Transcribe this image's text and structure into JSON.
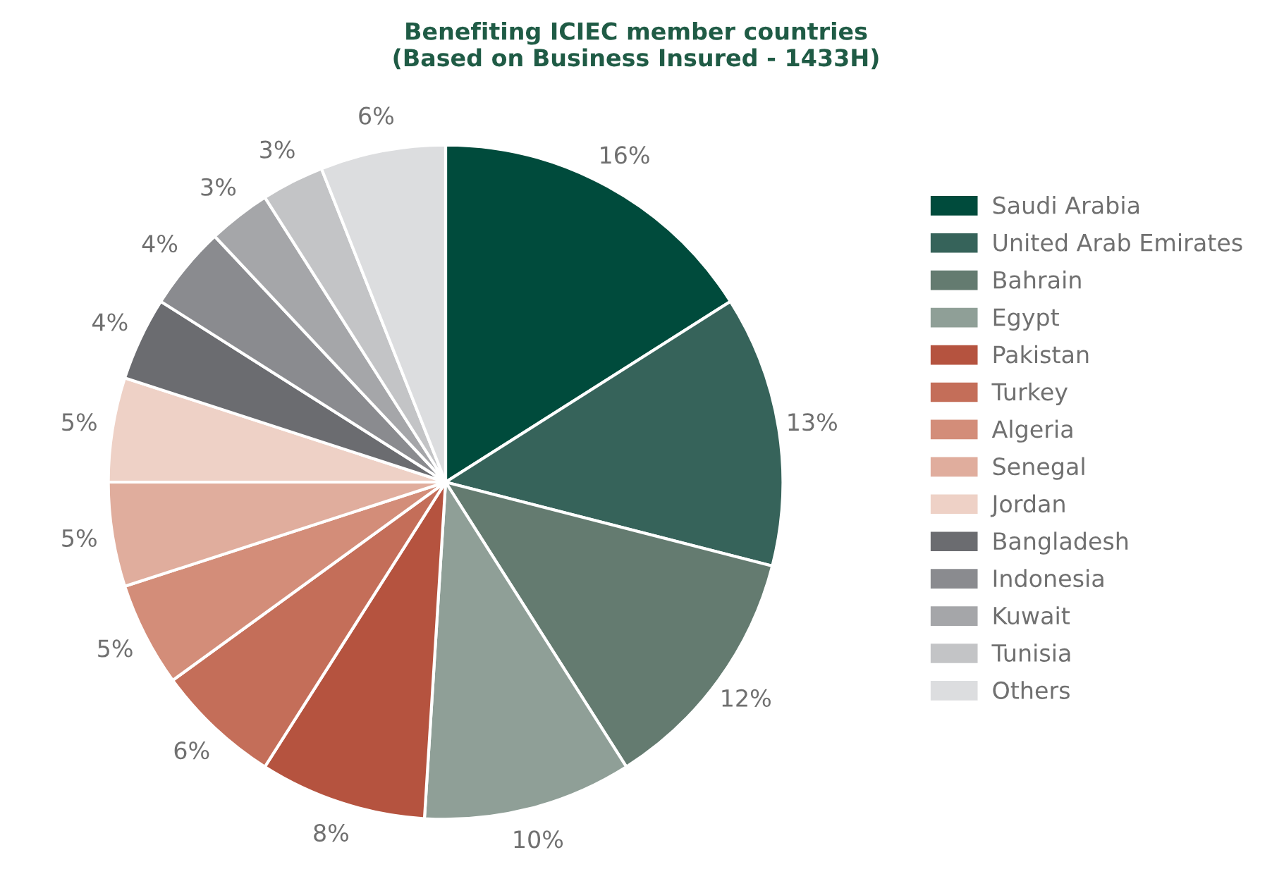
{
  "chart_data": {
    "type": "pie",
    "title": "Benefiting ICIEC member countries\n(Based on Business Insured - 1433H)",
    "categories": [
      "Saudi Arabia",
      "United Arab Emirates",
      "Bahrain",
      "Egypt",
      "Pakistan",
      "Turkey",
      "Algeria",
      "Senegal",
      "Jordan",
      "Bangladesh",
      "Indonesia",
      "Kuwait",
      "Tunisia",
      "Others"
    ],
    "values": [
      16,
      13,
      12,
      10,
      8,
      6,
      5,
      5,
      5,
      4,
      4,
      3,
      3,
      6
    ],
    "value_labels": [
      "16%",
      "13%",
      "12%",
      "10%",
      "8%",
      "6%",
      "5%",
      "5%",
      "5%",
      "4%",
      "4%",
      "3%",
      "3%",
      "6%"
    ],
    "colors": [
      "#004b3c",
      "#36635a",
      "#647b70",
      "#8f9f97",
      "#b5533f",
      "#c46e59",
      "#d38d79",
      "#e0ad9d",
      "#eed1c6",
      "#6b6c70",
      "#8a8b8f",
      "#a5a6a9",
      "#c3c4c6",
      "#dcdddf"
    ],
    "legend": "right"
  }
}
